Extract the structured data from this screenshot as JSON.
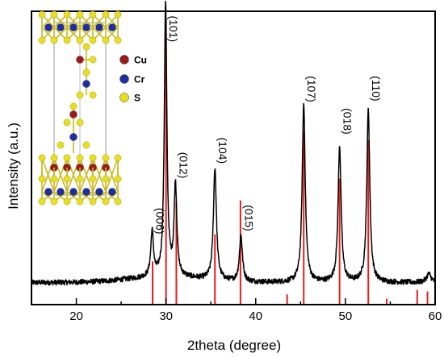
{
  "chart_data": {
    "type": "line",
    "xlabel": "2theta (degree)",
    "ylabel": "Intensity (a.u.)",
    "xlim": [
      15,
      60
    ],
    "x_ticks": [
      20,
      30,
      40,
      50,
      60
    ],
    "y_ticks_shown": false,
    "grid": false,
    "series": [
      {
        "style": "line",
        "color": "#000000",
        "baseline": 0.075,
        "peaks": [
          {
            "x": 28.45,
            "height": 0.155,
            "width": 0.18
          },
          {
            "x": 29.95,
            "height": 0.95,
            "width": 0.17
          },
          {
            "x": 31.05,
            "height": 0.32,
            "width": 0.18
          },
          {
            "x": 35.45,
            "height": 0.39,
            "width": 0.2
          },
          {
            "x": 38.35,
            "height": 0.16,
            "width": 0.2
          },
          {
            "x": 45.35,
            "height": 0.62,
            "width": 0.2
          },
          {
            "x": 49.35,
            "height": 0.475,
            "width": 0.2
          },
          {
            "x": 52.55,
            "height": 0.6,
            "width": 0.2
          },
          {
            "x": 59.3,
            "height": 0.03,
            "width": 0.3
          }
        ]
      },
      {
        "style": "reference-sticks",
        "color": "#e81e1e",
        "sticks": [
          {
            "x": 28.5,
            "height": 0.147
          },
          {
            "x": 30.0,
            "height": 0.972
          },
          {
            "x": 31.15,
            "height": 0.35
          },
          {
            "x": 35.45,
            "height": 0.24
          },
          {
            "x": 38.3,
            "height": 0.355
          },
          {
            "x": 43.5,
            "height": 0.035
          },
          {
            "x": 45.35,
            "height": 0.59
          },
          {
            "x": 49.35,
            "height": 0.43
          },
          {
            "x": 52.55,
            "height": 0.56
          },
          {
            "x": 54.6,
            "height": 0.02
          },
          {
            "x": 58.0,
            "height": 0.05
          },
          {
            "x": 59.15,
            "height": 0.045
          }
        ]
      }
    ],
    "annotations": [
      {
        "text": "(006)",
        "x": 28.45
      },
      {
        "text": "(101)",
        "x": 29.95
      },
      {
        "text": "(012)",
        "x": 31.05
      },
      {
        "text": "(104)",
        "x": 35.45
      },
      {
        "text": "(015)",
        "x": 38.35
      },
      {
        "text": "(107)",
        "x": 45.35
      },
      {
        "text": "(018)",
        "x": 49.35
      },
      {
        "text": "(110)",
        "x": 52.55
      }
    ],
    "inset_legend": [
      {
        "label": "Cu",
        "color": "#9b1c1c"
      },
      {
        "label": "Cr",
        "color": "#1f2e9e"
      },
      {
        "label": "S",
        "color": "#e8e01a"
      }
    ]
  }
}
